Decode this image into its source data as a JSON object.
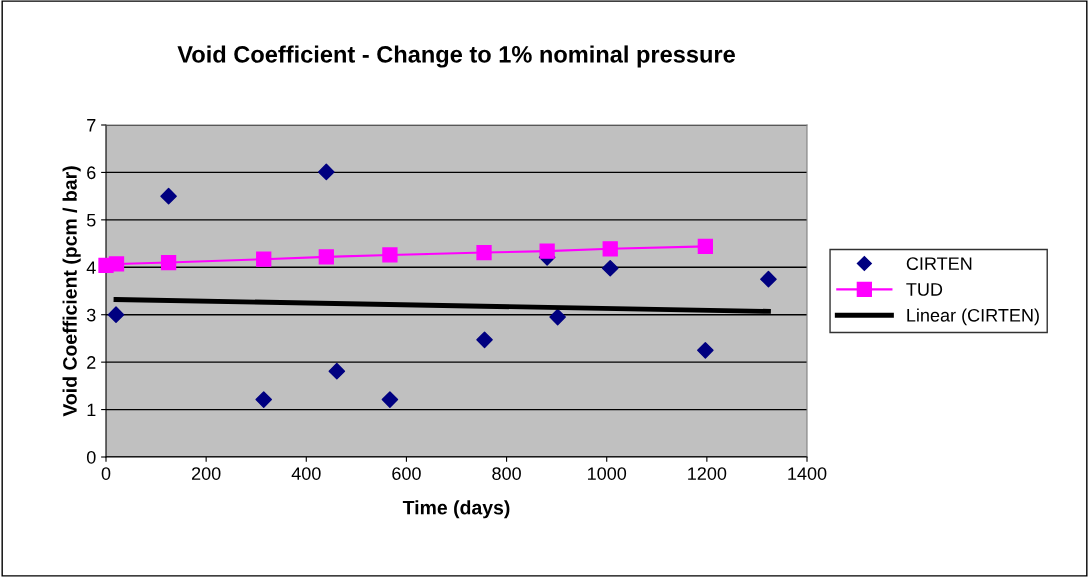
{
  "chart_data": {
    "type": "scatter",
    "title": "Void Coefficient - Change to 1% nominal pressure",
    "xlabel": "Time (days)",
    "ylabel": "Void Coefficient (pcm / bar)",
    "series": [
      {
        "name": "CIRTEN",
        "color": "#000080",
        "marker": "diamond",
        "x": [
          20,
          125,
          315,
          440,
          461,
          567,
          756,
          881,
          902,
          1007,
          1197,
          1323
        ],
        "values": [
          3.0,
          5.5,
          1.21,
          6.01,
          1.81,
          1.21,
          2.47,
          4.21,
          2.95,
          3.98,
          2.25,
          3.75
        ]
      },
      {
        "name": "TUD",
        "type": "line",
        "color": "#ff00ff",
        "marker": "square",
        "line_style": "solid",
        "x": [
          0,
          21,
          125,
          315,
          440,
          567,
          755,
          881,
          1007,
          1197
        ],
        "values": [
          4.04,
          4.07,
          4.1,
          4.17,
          4.22,
          4.26,
          4.31,
          4.34,
          4.39,
          4.44
        ]
      },
      {
        "name": "Linear (CIRTEN)",
        "type": "line",
        "color": "#000000",
        "marker": "none",
        "line_style": "solid",
        "x": [
          20,
          1323
        ],
        "values": [
          3.32,
          3.07
        ]
      }
    ],
    "xlim": [
      0,
      1400
    ],
    "xticks": [
      0,
      200,
      400,
      600,
      800,
      1000,
      1200,
      1400
    ],
    "ylim": [
      0,
      7
    ],
    "yticks": [
      0,
      1,
      2,
      3,
      4,
      5,
      6,
      7
    ],
    "grid": "y",
    "legend": "right"
  }
}
